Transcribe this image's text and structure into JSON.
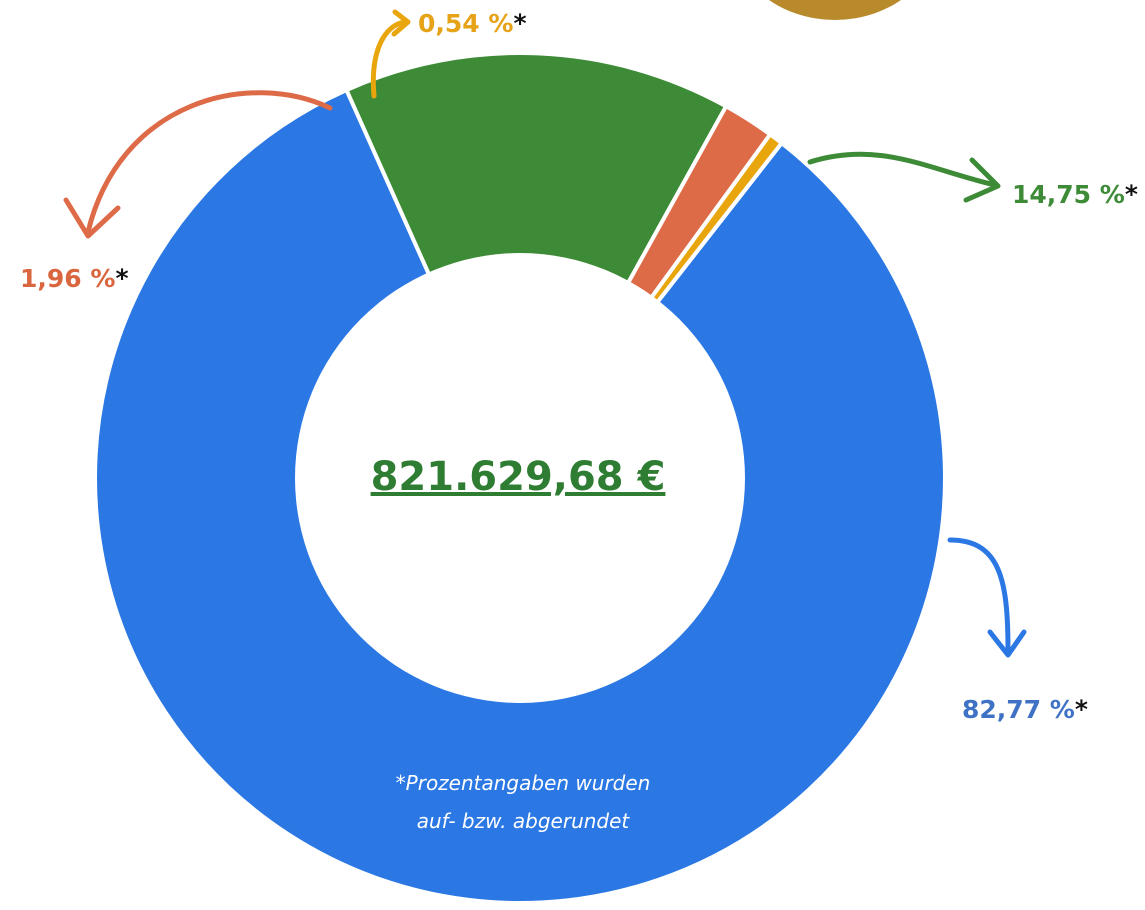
{
  "chart_data": {
    "type": "pie",
    "values": [
      82.77,
      14.75,
      1.96,
      0.54
    ],
    "value_labels": [
      "82,77 %",
      "14,75 %",
      "1,96 %",
      "0,54 %"
    ],
    "label_suffix": "*",
    "colors": [
      "#2b78e4",
      "#3d8b37",
      "#de6b48",
      "#e8a50c"
    ],
    "label_colors": [
      "#3f72c4",
      "#3d8b37",
      "#d9663f",
      "#e6a317"
    ],
    "center_label": "821.629,68 €",
    "footnote": [
      "*Prozentangaben wurden",
      "auf- bzw. abgerundet"
    ]
  }
}
